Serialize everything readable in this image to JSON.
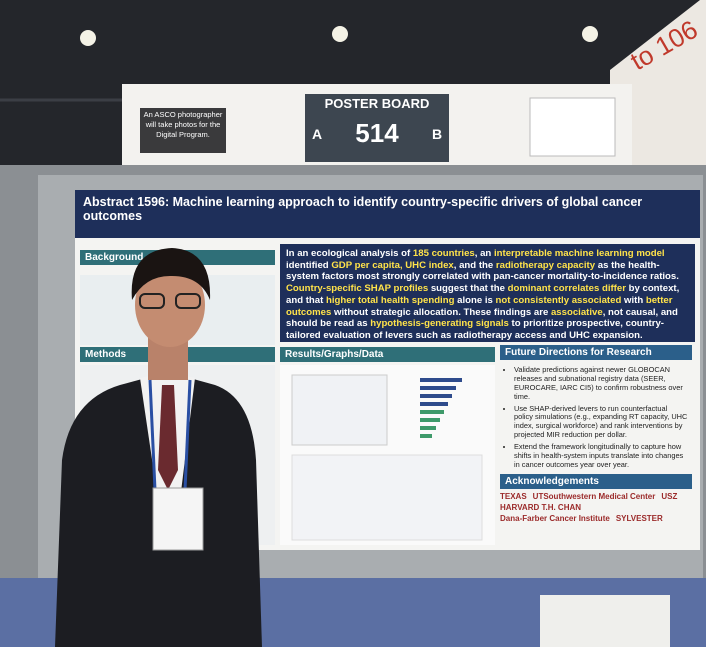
{
  "signage": {
    "photo_notice": "An ASCO photographer will take photos for the Digital Program.",
    "board_label": "POSTER BOARD",
    "side_left": "A",
    "board_number": "514",
    "side_right": "B",
    "aisle": "to 106"
  },
  "poster": {
    "title": "Abstract 1596: Machine learning approach to identify country-specific drivers of global cancer outcomes",
    "sections": {
      "background": "Background",
      "methods": "Methods",
      "results": "Results/Graphs/Data",
      "future": "Future Directions for Research",
      "acknowledgements": "Acknowledgements"
    },
    "key_finding": [
      {
        "text": "In an ecological analysis of ",
        "style": "plain"
      },
      {
        "text": "185 countries",
        "style": "highlight"
      },
      {
        "text": ", an ",
        "style": "plain"
      },
      {
        "text": "interpretable machine learning model",
        "style": "highlight"
      },
      {
        "text": " identified ",
        "style": "plain"
      },
      {
        "text": "GDP per capita, UHC index",
        "style": "highlight"
      },
      {
        "text": ", and the ",
        "style": "plain"
      },
      {
        "text": "radiotherapy capacity",
        "style": "highlight"
      },
      {
        "text": " as the health-system factors most strongly correlated with pan-cancer mortality-to-incidence ratios. ",
        "style": "plain"
      },
      {
        "text": "Country-specific SHAP profiles",
        "style": "highlight"
      },
      {
        "text": " suggest that the ",
        "style": "plain"
      },
      {
        "text": "dominant correlates differ",
        "style": "highlight"
      },
      {
        "text": " by context, and that ",
        "style": "plain"
      },
      {
        "text": "higher total health spending",
        "style": "highlight"
      },
      {
        "text": " alone is ",
        "style": "plain"
      },
      {
        "text": "not consistently associated",
        "style": "highlight"
      },
      {
        "text": " with ",
        "style": "plain"
      },
      {
        "text": "better outcomes",
        "style": "highlight"
      },
      {
        "text": " without strategic allocation. These findings are ",
        "style": "plain"
      },
      {
        "text": "associative",
        "style": "highlight"
      },
      {
        "text": ", not causal, and should be read as ",
        "style": "plain"
      },
      {
        "text": "hypothesis-generating signals",
        "style": "highlight"
      },
      {
        "text": " to prioritize prospective, country-tailored evaluation of levers such as radiotherapy access and UHC expansion.",
        "style": "plain"
      }
    ],
    "future_items": [
      "Validate predictions against newer GLOBOCAN releases and subnational registry data (SEER, EUROCARE, IARC CI5) to confirm robustness over time.",
      "Use SHAP-derived levers to run counterfactual policy simulations (e.g., expanding RT capacity, UHC index, surgical workforce) and rank interventions by projected MIR reduction per dollar.",
      "Extend the framework longitudinally to capture how shifts in health-system inputs translate into changes in cancer outcomes year over year."
    ],
    "logos": [
      "TEXAS",
      "UTSouthwestern Medical Center",
      "USZ",
      "HARVARD T.H. CHAN",
      "Dana-Farber Cancer Institute",
      "SYLVESTER"
    ]
  }
}
